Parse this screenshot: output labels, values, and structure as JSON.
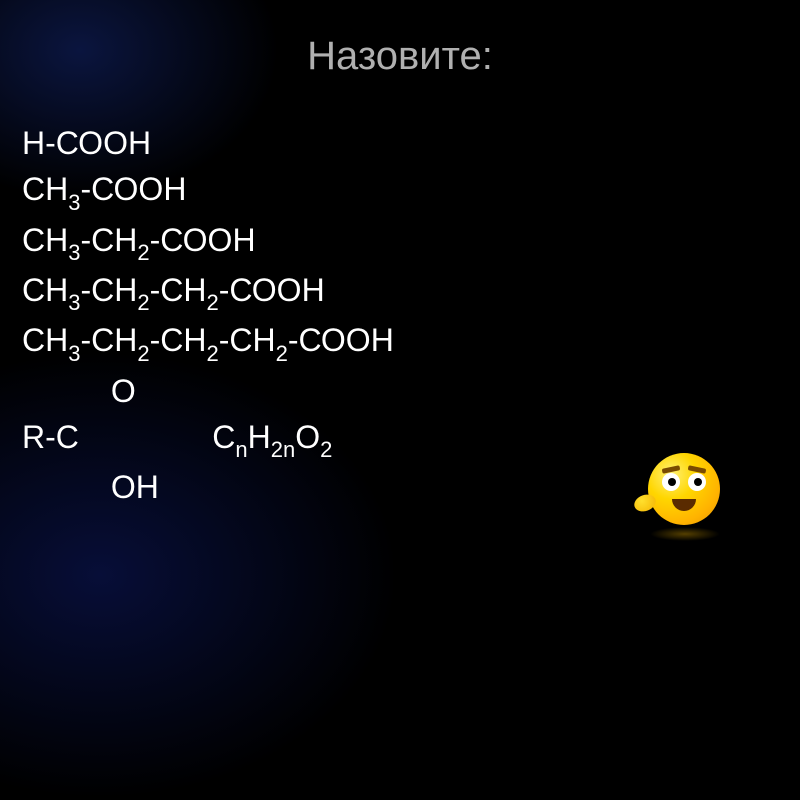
{
  "slide": {
    "title": "Назовите:",
    "background_color": "#000000",
    "title_color": "#b0b0b0",
    "text_color": "#ffffff",
    "title_fontsize": 40,
    "body_fontsize": 32,
    "subscript_fontsize": 22,
    "glow_color": "rgba(20,40,160,0.35)",
    "lines": [
      {
        "parts": [
          {
            "t": "Н-СООН"
          }
        ]
      },
      {
        "parts": [
          {
            "t": "СН"
          },
          {
            "t": "3",
            "sub": true
          },
          {
            "t": "-СООН"
          }
        ]
      },
      {
        "parts": [
          {
            "t": "СН"
          },
          {
            "t": "3",
            "sub": true
          },
          {
            "t": "-СН"
          },
          {
            "t": "2",
            "sub": true
          },
          {
            "t": "-СООН"
          }
        ]
      },
      {
        "parts": [
          {
            "t": "СН"
          },
          {
            "t": "3",
            "sub": true
          },
          {
            "t": "-СН"
          },
          {
            "t": "2",
            "sub": true
          },
          {
            "t": "-СН"
          },
          {
            "t": "2",
            "sub": true
          },
          {
            "t": "-СООН"
          }
        ]
      },
      {
        "parts": [
          {
            "t": "СН"
          },
          {
            "t": "3",
            "sub": true
          },
          {
            "t": "-СН"
          },
          {
            "t": "2",
            "sub": true
          },
          {
            "t": "-СН"
          },
          {
            "t": "2",
            "sub": true
          },
          {
            "t": "-СН"
          },
          {
            "t": "2",
            "sub": true
          },
          {
            "t": "-СООН"
          }
        ]
      },
      {
        "parts": [
          {
            "t": "          О"
          }
        ]
      },
      {
        "parts": [
          {
            "t": "R-С               С"
          },
          {
            "t": "n",
            "sub": true
          },
          {
            "t": "Н"
          },
          {
            "t": "2n",
            "sub": true
          },
          {
            "t": "О"
          },
          {
            "t": "2",
            "sub": true
          }
        ]
      },
      {
        "parts": [
          {
            "t": "          ОН"
          }
        ]
      }
    ]
  },
  "emoji": {
    "name": "thinking-face",
    "body_gradient": [
      "#fff176",
      "#ffd600",
      "#ffb300",
      "#e69100"
    ],
    "eye_color": "#ffffff",
    "pupil_color": "#000000",
    "brow_color": "#7a4b00",
    "mouth_color": "#5a2b00"
  }
}
